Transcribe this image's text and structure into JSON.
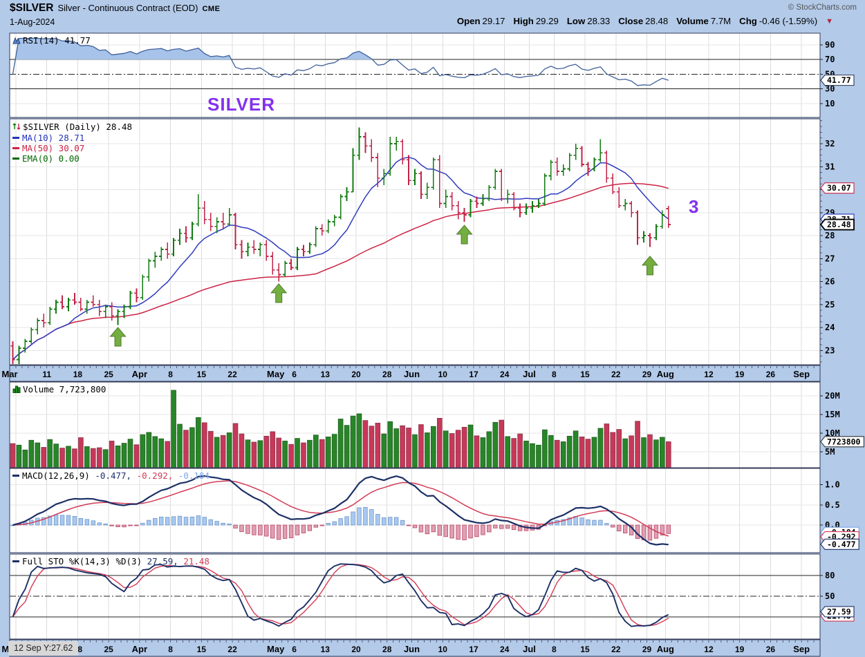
{
  "header": {
    "symbol": "$SILVER",
    "name": "Silver - Continuous Contract (EOD)",
    "exchange": "CME",
    "date": "1-Aug-2024",
    "copyright": "© StockCharts.com",
    "quote": {
      "open_label": "Open",
      "open": "29.17",
      "high_label": "High",
      "high": "29.29",
      "low_label": "Low",
      "low": "28.33",
      "close_label": "Close",
      "close": "28.48",
      "volume_label": "Volume",
      "volume": "7.7M",
      "chg_label": "Chg",
      "chg": "-0.46 (-1.59%)",
      "chg_arrow": "▼"
    }
  },
  "panels": {
    "rsi": {
      "legend": "RSI(14) 41.77"
    },
    "price": {
      "legend_title": "$SILVER (Daily) 28.48",
      "ma10": "MA(10) 28.71",
      "ma50": "MA(50) 30.07",
      "ema": "EMA(0) 0.00"
    },
    "volume": {
      "legend": "Volume 7,723,800"
    },
    "macd": {
      "legend_title": "MACD(12,26,9)",
      "v1": "-0.477,",
      "v2": "-0.292,",
      "v3": "-0.184"
    },
    "sto": {
      "legend_title": "Full STO %K(14,3) %D(3)",
      "k": "27.59,",
      "d": "21.48"
    }
  },
  "annotations": {
    "silver": "SILVER",
    "three": "3",
    "tooltip": "12 Sep Y:27.62"
  },
  "chart_data": {
    "type": "ohlc-multi-panel",
    "title": "$SILVER Silver - Continuous Contract (EOD) CME, Daily, 1-Aug-2024",
    "slots": 131,
    "x_axis": {
      "labels": [
        {
          "t": "Mar",
          "s": 0,
          "m": 1
        },
        {
          "t": "11",
          "s": 6
        },
        {
          "t": "18",
          "s": 11
        },
        {
          "t": "25",
          "s": 16
        },
        {
          "t": "Apr",
          "s": 21,
          "m": 1
        },
        {
          "t": "8",
          "s": 26
        },
        {
          "t": "15",
          "s": 31
        },
        {
          "t": "22",
          "s": 36
        },
        {
          "t": "May",
          "s": 43,
          "m": 1
        },
        {
          "t": "6",
          "s": 46
        },
        {
          "t": "13",
          "s": 51
        },
        {
          "t": "20",
          "s": 56
        },
        {
          "t": "28",
          "s": 61
        },
        {
          "t": "Jun",
          "s": 65,
          "m": 1
        },
        {
          "t": "10",
          "s": 70
        },
        {
          "t": "17",
          "s": 75
        },
        {
          "t": "24",
          "s": 80
        },
        {
          "t": "Jul",
          "s": 84,
          "m": 1
        },
        {
          "t": "8",
          "s": 88
        },
        {
          "t": "15",
          "s": 93
        },
        {
          "t": "22",
          "s": 98
        },
        {
          "t": "29",
          "s": 103
        },
        {
          "t": "Aug",
          "s": 106,
          "m": 1
        },
        {
          "t": "12",
          "s": 113
        },
        {
          "t": "19",
          "s": 118
        },
        {
          "t": "26",
          "s": 123
        },
        {
          "t": "Sep",
          "s": 128,
          "m": 1
        }
      ],
      "grid_slots": [
        1,
        6,
        11,
        16,
        21,
        26,
        31,
        36,
        41,
        46,
        51,
        56,
        61,
        65,
        70,
        75,
        80,
        84,
        88,
        93,
        98,
        103,
        106,
        113,
        118,
        123,
        128
      ]
    },
    "price": {
      "ylim": [
        22.4,
        33.1
      ],
      "ticks": [
        23,
        24,
        25,
        26,
        27,
        28,
        29,
        30,
        31,
        32
      ],
      "ma_periods": [
        10,
        50
      ],
      "tags": [
        {
          "t": "30.07",
          "v": 30.07,
          "c": "#cc2244"
        },
        {
          "t": "28.71",
          "v": 28.71,
          "c": "#2233bb"
        },
        {
          "t": "28.48",
          "v": 28.48,
          "c": "#000000",
          "b": 1
        }
      ],
      "ohlc": [
        [
          23.2,
          23.4,
          22.4,
          22.6
        ],
        [
          22.6,
          23.2,
          22.4,
          23.1
        ],
        [
          23.1,
          23.5,
          22.9,
          23.4
        ],
        [
          23.4,
          24.0,
          23.3,
          23.9
        ],
        [
          23.9,
          24.4,
          23.7,
          24.3
        ],
        [
          24.3,
          24.6,
          24.0,
          24.2
        ],
        [
          24.2,
          24.9,
          24.1,
          24.8
        ],
        [
          24.8,
          25.2,
          24.6,
          25.1
        ],
        [
          25.1,
          25.4,
          24.8,
          24.9
        ],
        [
          24.9,
          25.3,
          24.7,
          25.2
        ],
        [
          25.2,
          25.5,
          25.0,
          25.1
        ],
        [
          25.1,
          25.3,
          24.7,
          24.8
        ],
        [
          24.8,
          25.2,
          24.6,
          25.1
        ],
        [
          25.1,
          25.4,
          24.9,
          25.0
        ],
        [
          25.0,
          25.2,
          24.5,
          24.7
        ],
        [
          24.7,
          25.0,
          24.4,
          24.9
        ],
        [
          24.9,
          25.1,
          24.3,
          24.5
        ],
        [
          24.5,
          24.8,
          24.1,
          24.7
        ],
        [
          24.7,
          25.0,
          24.4,
          24.9
        ],
        [
          24.9,
          25.6,
          24.8,
          25.5
        ],
        [
          25.5,
          25.7,
          25.1,
          25.3
        ],
        [
          25.3,
          26.3,
          25.2,
          26.2
        ],
        [
          26.2,
          27.0,
          26.0,
          26.9
        ],
        [
          26.9,
          27.3,
          26.6,
          27.1
        ],
        [
          27.1,
          27.5,
          26.9,
          27.4
        ],
        [
          27.4,
          27.7,
          27.0,
          27.2
        ],
        [
          27.2,
          27.9,
          27.1,
          27.8
        ],
        [
          27.8,
          28.3,
          27.6,
          28.1
        ],
        [
          28.1,
          28.4,
          27.7,
          27.9
        ],
        [
          27.9,
          28.6,
          27.8,
          28.5
        ],
        [
          28.5,
          29.8,
          28.4,
          29.2
        ],
        [
          29.2,
          29.5,
          28.5,
          28.7
        ],
        [
          28.7,
          29.0,
          28.2,
          28.4
        ],
        [
          28.4,
          28.8,
          28.1,
          28.6
        ],
        [
          28.6,
          29.0,
          28.3,
          28.5
        ],
        [
          28.5,
          29.2,
          28.4,
          28.9
        ],
        [
          28.9,
          29.0,
          27.4,
          27.6
        ],
        [
          27.6,
          27.8,
          27.0,
          27.3
        ],
        [
          27.3,
          27.7,
          27.1,
          27.5
        ],
        [
          27.5,
          27.8,
          27.2,
          27.4
        ],
        [
          27.4,
          27.7,
          27.1,
          27.6
        ],
        [
          27.6,
          27.8,
          26.9,
          27.1
        ],
        [
          27.1,
          27.3,
          26.3,
          26.5
        ],
        [
          26.5,
          26.8,
          26.0,
          26.3
        ],
        [
          26.3,
          26.9,
          26.2,
          26.8
        ],
        [
          26.8,
          27.0,
          26.5,
          26.6
        ],
        [
          26.6,
          27.5,
          26.5,
          27.4
        ],
        [
          27.4,
          27.6,
          27.1,
          27.3
        ],
        [
          27.3,
          27.7,
          27.2,
          27.6
        ],
        [
          27.6,
          28.4,
          27.5,
          28.3
        ],
        [
          28.3,
          28.5,
          28.0,
          28.2
        ],
        [
          28.2,
          28.7,
          28.1,
          28.6
        ],
        [
          28.6,
          28.9,
          28.4,
          28.8
        ],
        [
          28.8,
          29.8,
          28.7,
          29.7
        ],
        [
          29.7,
          30.1,
          29.5,
          29.9
        ],
        [
          29.9,
          31.8,
          29.9,
          31.5
        ],
        [
          31.5,
          32.7,
          31.3,
          32.3
        ],
        [
          32.3,
          32.5,
          31.6,
          31.9
        ],
        [
          31.9,
          32.2,
          31.2,
          31.4
        ],
        [
          31.4,
          31.6,
          30.1,
          30.5
        ],
        [
          30.5,
          30.9,
          30.2,
          30.7
        ],
        [
          30.7,
          32.3,
          30.6,
          32.0
        ],
        [
          32.0,
          32.3,
          31.7,
          32.1
        ],
        [
          32.1,
          32.2,
          31.1,
          31.3
        ],
        [
          31.3,
          31.5,
          30.2,
          30.4
        ],
        [
          30.4,
          30.9,
          30.2,
          30.7
        ],
        [
          30.7,
          30.8,
          29.6,
          29.8
        ],
        [
          29.8,
          30.3,
          29.6,
          30.1
        ],
        [
          30.1,
          31.4,
          30.0,
          31.3
        ],
        [
          31.3,
          31.5,
          29.2,
          29.4
        ],
        [
          29.4,
          30.0,
          29.2,
          29.7
        ],
        [
          29.7,
          29.9,
          29.1,
          29.3
        ],
        [
          29.3,
          29.5,
          28.7,
          29.0
        ],
        [
          29.0,
          29.2,
          28.6,
          28.9
        ],
        [
          28.9,
          29.6,
          28.8,
          29.5
        ],
        [
          29.5,
          29.7,
          29.2,
          29.4
        ],
        [
          29.4,
          29.8,
          29.3,
          29.6
        ],
        [
          29.6,
          30.2,
          29.5,
          30.1
        ],
        [
          30.1,
          30.9,
          30.0,
          30.8
        ],
        [
          30.8,
          30.9,
          29.5,
          29.6
        ],
        [
          29.6,
          30.0,
          29.4,
          29.8
        ],
        [
          29.8,
          29.9,
          29.1,
          29.2
        ],
        [
          29.2,
          29.4,
          28.8,
          29.0
        ],
        [
          29.0,
          29.4,
          28.9,
          29.2
        ],
        [
          29.2,
          29.5,
          29.0,
          29.3
        ],
        [
          29.3,
          29.6,
          29.2,
          29.4
        ],
        [
          29.4,
          30.7,
          29.3,
          30.6
        ],
        [
          30.6,
          31.3,
          30.4,
          31.2
        ],
        [
          31.2,
          31.4,
          30.6,
          30.8
        ],
        [
          30.8,
          31.1,
          30.6,
          30.9
        ],
        [
          30.9,
          31.6,
          30.8,
          31.5
        ],
        [
          31.5,
          32.0,
          31.3,
          31.8
        ],
        [
          31.8,
          31.9,
          31.0,
          31.1
        ],
        [
          31.1,
          31.2,
          30.6,
          30.9
        ],
        [
          30.9,
          31.4,
          30.8,
          31.3
        ],
        [
          31.3,
          32.2,
          31.2,
          31.6
        ],
        [
          31.6,
          31.7,
          30.3,
          30.5
        ],
        [
          30.5,
          30.7,
          29.8,
          29.9
        ],
        [
          29.9,
          30.1,
          29.2,
          29.3
        ],
        [
          29.3,
          29.6,
          29.1,
          29.4
        ],
        [
          29.4,
          29.5,
          28.8,
          29.0
        ],
        [
          29.0,
          29.1,
          27.6,
          27.9
        ],
        [
          27.9,
          28.2,
          27.7,
          28.0
        ],
        [
          28.0,
          28.1,
          27.5,
          27.9
        ],
        [
          27.9,
          28.5,
          27.8,
          28.4
        ],
        [
          28.4,
          29.1,
          28.3,
          28.9
        ],
        [
          29.17,
          29.29,
          28.33,
          28.48
        ]
      ]
    },
    "volume": {
      "unit": "millions",
      "ticks": [
        {
          "t": "5M",
          "v": 5
        },
        {
          "t": "10M",
          "v": 10
        },
        {
          "t": "15M",
          "v": 15
        },
        {
          "t": "20M",
          "v": 20
        }
      ],
      "tags": [
        {
          "t": "7723800",
          "v": 7.7238,
          "c": "#333333"
        }
      ],
      "values": [
        7.2,
        6.8,
        5.5,
        8.1,
        7.4,
        6.2,
        8.3,
        7.1,
        6.0,
        6.5,
        5.8,
        8.8,
        6.4,
        5.9,
        6.1,
        5.6,
        7.9,
        6.6,
        7.3,
        8.4,
        6.9,
        9.6,
        10.2,
        9.1,
        8.5,
        7.8,
        21.5,
        12.4,
        10.8,
        11.5,
        14.2,
        12.8,
        10.5,
        8.9,
        9.4,
        10.1,
        12.6,
        9.8,
        8.2,
        7.6,
        8.0,
        9.2,
        10.4,
        8.7,
        7.9,
        7.0,
        8.6,
        7.4,
        8.1,
        9.5,
        8.3,
        9.0,
        9.7,
        13.8,
        12.1,
        14.6,
        15.2,
        13.4,
        11.9,
        12.7,
        9.8,
        13.1,
        11.2,
        12.0,
        11.4,
        9.6,
        12.3,
        10.1,
        11.8,
        14.0,
        10.6,
        9.9,
        10.8,
        11.6,
        12.2,
        9.3,
        8.8,
        10.4,
        12.9,
        13.5,
        9.1,
        8.6,
        9.8,
        7.9,
        7.2,
        6.8,
        10.9,
        9.4,
        8.1,
        7.7,
        9.2,
        10.6,
        9.0,
        8.4,
        8.9,
        11.3,
        12.5,
        10.2,
        11.0,
        8.5,
        9.3,
        13.2,
        8.8,
        9.6,
        8.2,
        8.9,
        7.7
      ]
    },
    "rsi": {
      "period": 14,
      "last": 41.77,
      "ticks": [
        90,
        70,
        50,
        30,
        10
      ],
      "solid_lines": [
        70,
        30
      ],
      "dashdot_line": 50,
      "tags": [
        {
          "t": "41.77",
          "v": 41.77,
          "c": "#2a3550"
        }
      ]
    },
    "macd": {
      "params": [
        12,
        26,
        9
      ],
      "last": [
        -0.477,
        -0.292,
        -0.184
      ],
      "ticks": [
        {
          "t": "1.0",
          "v": 1.0
        },
        {
          "t": "0.5",
          "v": 0.5
        },
        {
          "t": "0.0",
          "v": 0.0
        }
      ],
      "tags": [
        {
          "t": "-0.184",
          "v": -0.184,
          "c": "#7aa6e8"
        },
        {
          "t": "-0.292",
          "v": -0.292,
          "c": "#d23a55"
        },
        {
          "t": "-0.477",
          "v": -0.477,
          "c": "#1c2f66"
        }
      ]
    },
    "sto": {
      "params": [
        14,
        3,
        3
      ],
      "last_k": 27.59,
      "last_d": 21.48,
      "ticks": [
        {
          "t": "80",
          "v": 80
        },
        {
          "t": "50",
          "v": 50
        }
      ],
      "solid_lines": [
        80,
        20
      ],
      "dashdot_line": 50,
      "tags": [
        {
          "t": "21.48",
          "v": 21.48,
          "c": "#d23a55"
        },
        {
          "t": "27.59",
          "v": 27.59,
          "c": "#1c2f66"
        }
      ]
    },
    "arrows": [
      {
        "slot": 17,
        "price": 24.0
      },
      {
        "slot": 43,
        "price": 25.9
      },
      {
        "slot": 73,
        "price": 28.45
      },
      {
        "slot": 103,
        "price": 27.1
      }
    ],
    "colors": {
      "bg": "#b3cae9",
      "grid_v": "#dcdcdc",
      "grid_h": "#e6e6e6",
      "border": "#333a56",
      "up": "#117a11",
      "down": "#c22348",
      "ma10": "#2f3bbd",
      "ma50": "#cc2244",
      "ema": "#006600",
      "rsi_line": "#40609a",
      "rsi_fill": "#a7c3ea",
      "macd_line": "#1c2f66",
      "macd_signal": "#d23a55",
      "hist_pos": "#a9c9f1",
      "hist_pos_stroke": "#6e96c6",
      "hist_neg": "#dfa0b2",
      "hist_neg_stroke": "#bb4466",
      "sto_k": "#1c2f66",
      "sto_d": "#d23a55",
      "arrow": "#74ae41",
      "arrow_stroke": "#4e7d2b",
      "annotation_purple": "#8330f0"
    }
  }
}
